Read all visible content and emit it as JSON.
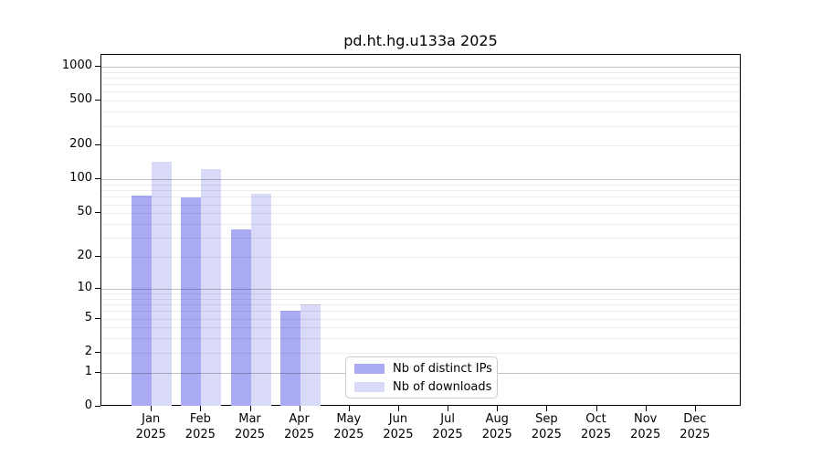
{
  "title": "pd.ht.hg.u133a 2025",
  "chart_data": {
    "type": "bar",
    "title": "pd.ht.hg.u133a 2025",
    "x_months": [
      "Jan",
      "Feb",
      "Mar",
      "Apr",
      "May",
      "Jun",
      "Jul",
      "Aug",
      "Sep",
      "Oct",
      "Nov",
      "Dec"
    ],
    "x_year": "2025",
    "y_scale": "log10(1 + value)",
    "y_ticks": [
      0,
      1,
      2,
      5,
      10,
      20,
      50,
      100,
      200,
      500,
      1000
    ],
    "ylim": [
      0,
      1270
    ],
    "grid": true,
    "legend_position": "lower center",
    "series": [
      {
        "name": "Nb of distinct IPs",
        "color": "#aaaaf5",
        "values": [
          72,
          69,
          36,
          6,
          0,
          0,
          0,
          0,
          0,
          0,
          0,
          0
        ]
      },
      {
        "name": "Nb of downloads",
        "color": "#d9d9f8",
        "values": [
          145,
          125,
          74,
          7,
          0,
          0,
          0,
          0,
          0,
          0,
          0,
          0
        ]
      }
    ]
  }
}
